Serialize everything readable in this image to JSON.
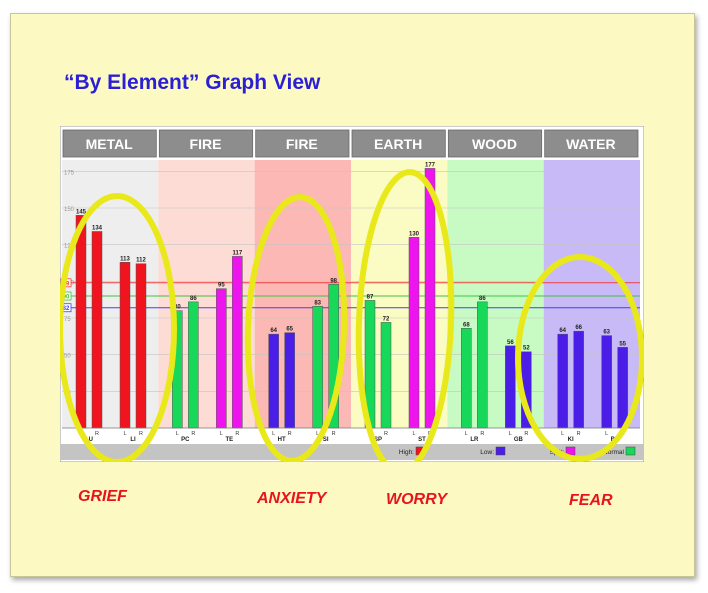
{
  "slide": {
    "title": "“By Element” Graph View",
    "emotions": [
      "GRIEF",
      "ANXIETY",
      "WORRY",
      "FEAR"
    ]
  },
  "chart_data": {
    "type": "bar",
    "title": "“By Element” Graph View",
    "xlabel": "",
    "ylabel": "",
    "ylim": [
      0,
      180
    ],
    "y_ticks": [
      25,
      50,
      75,
      100,
      125,
      150,
      175
    ],
    "reference_lines": [
      {
        "label": "99",
        "value": 99,
        "color": "#f04040"
      },
      {
        "label": "90",
        "value": 90,
        "color": "#40c040"
      },
      {
        "label": "82",
        "value": 82,
        "color": "#4040f0"
      }
    ],
    "elements": [
      "METAL",
      "FIRE",
      "FIRE",
      "EARTH",
      "WOOD",
      "WATER"
    ],
    "element_colors": [
      "#eeeeee",
      "#fcdcd4",
      "#fbb8b4",
      "#fbfbc4",
      "#c8fbc4",
      "#c8baf6"
    ],
    "meridians": [
      {
        "name": "LU",
        "L": 145,
        "R": 134,
        "color": "#f0141e"
      },
      {
        "name": "LI",
        "L": 113,
        "R": 112,
        "color": "#f0141e"
      },
      {
        "name": "PC",
        "L": 80,
        "R": 86,
        "color": "#18d85a"
      },
      {
        "name": "TE",
        "L": 95,
        "R": 117,
        "color": "#ee14ee"
      },
      {
        "name": "HT",
        "L": 64,
        "R": 65,
        "color": "#4a1ee6"
      },
      {
        "name": "SI",
        "L": 83,
        "R": 98,
        "color": "#18d85a"
      },
      {
        "name": "SP",
        "L": 87,
        "R": 72,
        "color": "#18d85a"
      },
      {
        "name": "ST",
        "L": 130,
        "R": 177,
        "color": "#ee14ee"
      },
      {
        "name": "LR",
        "L": 68,
        "R": 86,
        "color": "#18d85a"
      },
      {
        "name": "GB",
        "L": 56,
        "R": 52,
        "color": "#4a1ee6"
      },
      {
        "name": "KI",
        "L": 64,
        "R": 66,
        "color": "#4a1ee6"
      },
      {
        "name": "BL",
        "L": 63,
        "R": 55,
        "color": "#4a1ee6"
      }
    ],
    "legend": [
      {
        "label": "High:",
        "color": "#f0141e"
      },
      {
        "label": "Low:",
        "color": "#4a1ee6"
      },
      {
        "label": "Split:",
        "color": "#ee14ee"
      },
      {
        "label": "Normal",
        "color": "#18d85a"
      }
    ],
    "grid": true,
    "legend_position": "bottom-right"
  }
}
